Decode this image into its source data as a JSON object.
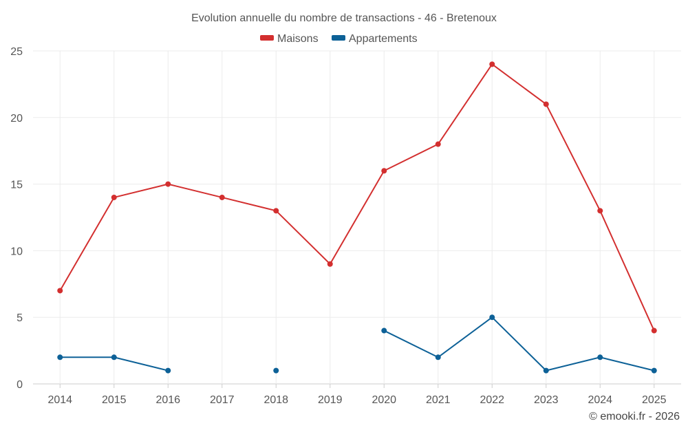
{
  "chart_data": {
    "type": "line",
    "title": "Evolution annuelle du nombre de transactions - 46 - Bretenoux",
    "categories": [
      "2014",
      "2015",
      "2016",
      "2017",
      "2018",
      "2019",
      "2020",
      "2021",
      "2022",
      "2023",
      "2024",
      "2025"
    ],
    "series": [
      {
        "name": "Maisons",
        "color": "#d32f2f",
        "values": [
          7,
          14,
          15,
          14,
          13,
          9,
          16,
          18,
          24,
          21,
          13,
          4
        ]
      },
      {
        "name": "Appartements",
        "color": "#0d6197",
        "values": [
          2,
          2,
          1,
          null,
          1,
          null,
          4,
          2,
          5,
          1,
          2,
          1
        ]
      }
    ],
    "ylim": [
      0,
      25
    ],
    "yticks": [
      0,
      5,
      10,
      15,
      20,
      25
    ],
    "xlabel": "",
    "ylabel": "",
    "grid": true,
    "legend": "top-center"
  },
  "credit": "© emooki.fr - 2026"
}
